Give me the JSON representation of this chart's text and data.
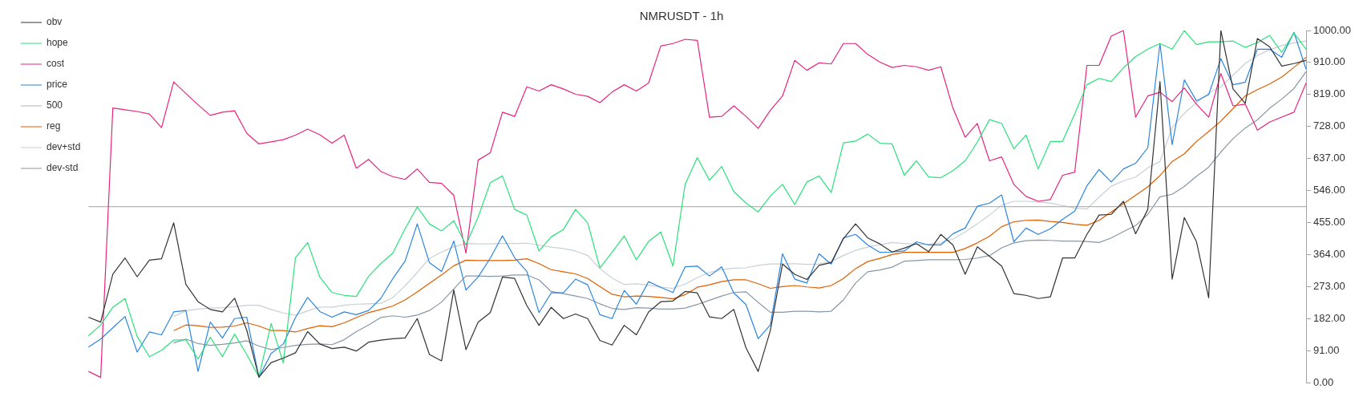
{
  "chart_data": {
    "type": "line",
    "title": "NMRUSDT - 1h",
    "categories": [
      null,
      null,
      null,
      null,
      null,
      null,
      null,
      null,
      null,
      null,
      null,
      null,
      null,
      null,
      null,
      null,
      null,
      null,
      null,
      null,
      null,
      null,
      null,
      null,
      null,
      null,
      null,
      null,
      null,
      null,
      null,
      null,
      null,
      null,
      null,
      null,
      null,
      null,
      null,
      null,
      null,
      null,
      null,
      null,
      null,
      null,
      null,
      null,
      null,
      null,
      null,
      null,
      null,
      null,
      null,
      null,
      null,
      null,
      null,
      null,
      null,
      null,
      null,
      null,
      null,
      null,
      null,
      null,
      null,
      null,
      null,
      null,
      null,
      null,
      null,
      null,
      null,
      null,
      null,
      null,
      null,
      null,
      null,
      null,
      null,
      null,
      null,
      null,
      null,
      null,
      null,
      null,
      null,
      null,
      null,
      null,
      null,
      null,
      null,
      null,
      null
    ],
    "ylim": [
      0,
      1000
    ],
    "yticks": [
      {
        "value": 0,
        "label": "0.00"
      },
      {
        "value": 91,
        "label": "91.00"
      },
      {
        "value": 182,
        "label": "182.00"
      },
      {
        "value": 273,
        "label": "273.00"
      },
      {
        "value": 364,
        "label": "364.00"
      },
      {
        "value": 455,
        "label": "455.00"
      },
      {
        "value": 546,
        "label": "546.00"
      },
      {
        "value": 637,
        "label": "637.00"
      },
      {
        "value": 728,
        "label": "728.00"
      },
      {
        "value": 819,
        "label": "819.00"
      },
      {
        "value": 910,
        "label": "910.00"
      },
      {
        "value": 1000,
        "label": "1000.00"
      }
    ],
    "tick_labels": "y",
    "grid": false,
    "legend": "top left",
    "marker": "none",
    "line_style": "solid",
    "series": [
      {
        "name": "obv",
        "color": "#333333",
        "values": [
          186,
          172,
          308,
          354,
          301,
          348,
          352,
          454,
          279,
          230,
          208,
          201,
          240,
          149,
          16,
          57,
          70,
          85,
          145,
          110,
          97,
          101,
          90,
          115,
          121,
          125,
          127,
          182,
          80,
          62,
          263,
          94,
          172,
          199,
          300,
          296,
          219,
          163,
          214,
          182,
          195,
          182,
          120,
          107,
          163,
          136,
          201,
          230,
          232,
          259,
          255,
          187,
          182,
          208,
          99,
          32,
          148,
          337,
          308,
          293,
          333,
          341,
          409,
          451,
          411,
          394,
          371,
          382,
          395,
          372,
          421,
          391,
          308,
          386,
          359,
          331,
          253,
          248,
          239,
          244,
          354,
          354,
          421,
          476,
          478,
          515,
          423,
          492,
          855,
          294,
          469,
          400,
          241,
          1000,
          834,
          793,
          977,
          954,
          899,
          906,
          915
        ]
      },
      {
        "name": "hope",
        "color": "#2ae27a",
        "values": [
          133,
          164,
          214,
          239,
          131,
          74,
          92,
          121,
          122,
          67,
          129,
          74,
          138,
          80,
          16,
          168,
          56,
          355,
          398,
          300,
          256,
          248,
          245,
          302,
          338,
          368,
          437,
          499,
          451,
          431,
          460,
          391,
          470,
          568,
          587,
          492,
          476,
          374,
          414,
          435,
          492,
          454,
          326,
          370,
          417,
          349,
          401,
          428,
          331,
          563,
          639,
          575,
          614,
          543,
          510,
          485,
          530,
          563,
          506,
          570,
          587,
          540,
          681,
          686,
          706,
          680,
          678,
          589,
          630,
          584,
          582,
          602,
          630,
          683,
          747,
          736,
          664,
          703,
          607,
          685,
          685,
          763,
          846,
          864,
          855,
          894,
          926,
          947,
          963,
          947,
          1000,
          960,
          968,
          968,
          970,
          952,
          966,
          986,
          938,
          993,
          947
        ]
      },
      {
        "name": "cost",
        "color": "#e8247f",
        "values": [
          32,
          15,
          780,
          775,
          770,
          763,
          724,
          854,
          821,
          789,
          759,
          768,
          772,
          708,
          678,
          684,
          690,
          703,
          720,
          704,
          680,
          703,
          609,
          634,
          600,
          585,
          577,
          607,
          569,
          566,
          532,
          368,
          632,
          653,
          768,
          756,
          840,
          828,
          846,
          834,
          819,
          813,
          795,
          825,
          846,
          828,
          851,
          956,
          963,
          975,
          972,
          754,
          756,
          786,
          756,
          722,
          773,
          814,
          915,
          887,
          908,
          905,
          963,
          963,
          932,
          910,
          895,
          901,
          897,
          887,
          897,
          779,
          697,
          736,
          630,
          641,
          563,
          529,
          515,
          520,
          589,
          598,
          901,
          901,
          984,
          1000,
          754,
          814,
          825,
          798,
          837,
          791,
          754,
          878,
          786,
          791,
          717,
          740,
          754,
          768,
          851
        ]
      },
      {
        "name": "price",
        "color": "#2a86e0",
        "values": [
          101,
          124,
          156,
          188,
          87,
          144,
          136,
          201,
          205,
          32,
          172,
          127,
          182,
          186,
          15,
          83,
          110,
          185,
          242,
          202,
          186,
          201,
          193,
          205,
          239,
          296,
          345,
          451,
          341,
          316,
          402,
          263,
          300,
          354,
          417,
          355,
          316,
          199,
          255,
          255,
          294,
          278,
          193,
          182,
          262,
          223,
          287,
          271,
          256,
          329,
          331,
          303,
          329,
          255,
          222,
          125,
          164,
          366,
          294,
          283,
          366,
          337,
          411,
          421,
          391,
          370,
          371,
          374,
          400,
          391,
          391,
          423,
          439,
          501,
          510,
          533,
          400,
          439,
          421,
          437,
          464,
          487,
          559,
          605,
          570,
          607,
          623,
          667,
          963,
          676,
          860,
          800,
          818,
          920,
          846,
          853,
          947,
          947,
          924,
          995,
          890
        ]
      },
      {
        "name": "500",
        "color": "#b5b5b5",
        "values": [
          500,
          500,
          500,
          500,
          500,
          500,
          500,
          500,
          500,
          500,
          500,
          500,
          500,
          500,
          500,
          500,
          500,
          500,
          500,
          500,
          500,
          500,
          500,
          500,
          500,
          500,
          500,
          500,
          500,
          500,
          500,
          500,
          500,
          500,
          500,
          500,
          500,
          500,
          500,
          500,
          500,
          500,
          500,
          500,
          500,
          500,
          500,
          500,
          500,
          500,
          500,
          500,
          500,
          500,
          500,
          500,
          500,
          500,
          500,
          500,
          500,
          500,
          500,
          500,
          500,
          500,
          500,
          500,
          500,
          500,
          500,
          500,
          500,
          500,
          500,
          500,
          500,
          500,
          500,
          500,
          500,
          500,
          500,
          500,
          500,
          500,
          500,
          500,
          500,
          500,
          500,
          500,
          500,
          500,
          500,
          500,
          500,
          500,
          500,
          500,
          500
        ]
      },
      {
        "name": "reg",
        "color": "#e05d00",
        "values": [
          null,
          null,
          null,
          null,
          null,
          null,
          null,
          148,
          164,
          162,
          157,
          158,
          161,
          170,
          161,
          148,
          148,
          144,
          154,
          162,
          159,
          170,
          185,
          199,
          208,
          218,
          235,
          258,
          282,
          306,
          332,
          348,
          347,
          347,
          347,
          348,
          352,
          338,
          321,
          315,
          309,
          296,
          273,
          251,
          244,
          246,
          245,
          242,
          238,
          250,
          271,
          278,
          287,
          292,
          292,
          281,
          268,
          273,
          276,
          272,
          269,
          276,
          296,
          324,
          344,
          353,
          364,
          370,
          370,
          370,
          370,
          370,
          381,
          397,
          416,
          443,
          457,
          461,
          462,
          458,
          455,
          450,
          447,
          461,
          485,
          508,
          532,
          556,
          588,
          628,
          650,
          685,
          713,
          743,
          778,
          814,
          832,
          848,
          868,
          895,
          924
        ]
      },
      {
        "name": "dev+std",
        "color": "#c8cfd6",
        "values": [
          null,
          null,
          null,
          null,
          null,
          null,
          null,
          188,
          204,
          209,
          212,
          213,
          216,
          220,
          220,
          208,
          198,
          192,
          204,
          215,
          214,
          220,
          223,
          224,
          225,
          242,
          275,
          313,
          353,
          371,
          386,
          395,
          394,
          394,
          395,
          395,
          396,
          391,
          385,
          381,
          374,
          361,
          324,
          297,
          279,
          281,
          277,
          271,
          268,
          280,
          298,
          313,
          321,
          325,
          326,
          333,
          337,
          337,
          338,
          336,
          337,
          344,
          361,
          376,
          385,
          392,
          398,
          395,
          393,
          393,
          397,
          408,
          428,
          451,
          476,
          504,
          515,
          515,
          513,
          510,
          503,
          496,
          493,
          527,
          558,
          573,
          584,
          610,
          628,
          725,
          765,
          795,
          822,
          840,
          873,
          906,
          929,
          945,
          957,
          965,
          970
        ]
      },
      {
        "name": "dev-std",
        "color": "#8797a6",
        "values": [
          null,
          null,
          null,
          null,
          null,
          null,
          null,
          113,
          124,
          111,
          106,
          109,
          113,
          119,
          104,
          94,
          100,
          106,
          109,
          110,
          108,
          122,
          145,
          164,
          185,
          190,
          186,
          192,
          205,
          229,
          266,
          303,
          303,
          302,
          303,
          306,
          306,
          292,
          259,
          253,
          246,
          239,
          224,
          211,
          208,
          213,
          212,
          209,
          209,
          212,
          222,
          234,
          246,
          256,
          258,
          228,
          200,
          200,
          203,
          203,
          201,
          203,
          235,
          283,
          315,
          320,
          328,
          345,
          347,
          349,
          349,
          349,
          350,
          354,
          361,
          383,
          397,
          403,
          405,
          404,
          402,
          402,
          401,
          398,
          411,
          429,
          446,
          478,
          528,
          535,
          557,
          586,
          612,
          655,
          693,
          723,
          746,
          779,
          805,
          835,
          883
        ]
      }
    ]
  }
}
